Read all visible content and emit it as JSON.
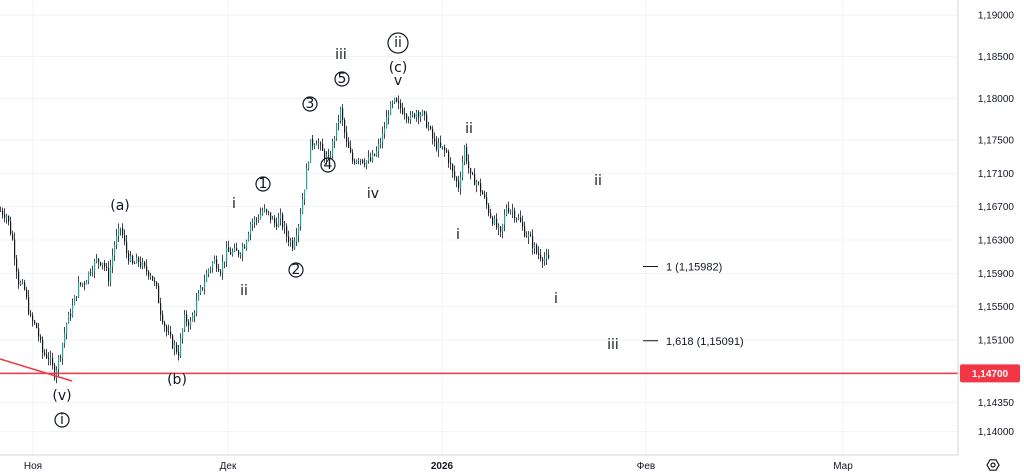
{
  "chart_data": {
    "type": "candlestick",
    "y_axis": {
      "ylim": [
        1.1372,
        1.1918
      ],
      "ticks": [
        "1,19000",
        "1,18500",
        "1,18000",
        "1,17500",
        "1,17100",
        "1,16700",
        "1,16300",
        "1,15900",
        "1,15500",
        "1,15100",
        "1,14350",
        "1,14000"
      ],
      "tick_values": [
        1.19,
        1.185,
        1.18,
        1.175,
        1.171,
        1.167,
        1.163,
        1.159,
        1.155,
        1.151,
        1.1435,
        1.14
      ]
    },
    "x_axis": {
      "labels": [
        "Ноя",
        "Дек",
        "2026",
        "Фев",
        "Мар"
      ],
      "bold": [
        false,
        false,
        true,
        false,
        false
      ]
    },
    "horizontal_line": {
      "value": 1.147,
      "label": "1,14700",
      "color": "#f23645"
    },
    "price_path": [
      [
        0,
        1.1665
      ],
      [
        6,
        1.166
      ],
      [
        12,
        1.163
      ],
      [
        18,
        1.158
      ],
      [
        24,
        1.157
      ],
      [
        30,
        1.1535
      ],
      [
        36,
        1.1525
      ],
      [
        42,
        1.1495
      ],
      [
        48,
        1.149
      ],
      [
        54,
        1.147
      ],
      [
        60,
        1.1495
      ],
      [
        66,
        1.153
      ],
      [
        72,
        1.155
      ],
      [
        78,
        1.1575
      ],
      [
        84,
        1.158
      ],
      [
        90,
        1.1595
      ],
      [
        96,
        1.1605
      ],
      [
        102,
        1.1605
      ],
      [
        108,
        1.1585
      ],
      [
        114,
        1.1625
      ],
      [
        120,
        1.1645
      ],
      [
        126,
        1.1615
      ],
      [
        132,
        1.16
      ],
      [
        138,
        1.1605
      ],
      [
        144,
        1.1595
      ],
      [
        150,
        1.159
      ],
      [
        156,
        1.157
      ],
      [
        160,
        1.1545
      ],
      [
        166,
        1.152
      ],
      [
        172,
        1.1505
      ],
      [
        178,
        1.1495
      ],
      [
        184,
        1.1535
      ],
      [
        190,
        1.153
      ],
      [
        196,
        1.1555
      ],
      [
        202,
        1.1575
      ],
      [
        208,
        1.1595
      ],
      [
        214,
        1.1605
      ],
      [
        220,
        1.1595
      ],
      [
        226,
        1.1615
      ],
      [
        232,
        1.1615
      ],
      [
        238,
        1.1615
      ],
      [
        244,
        1.1625
      ],
      [
        250,
        1.165
      ],
      [
        256,
        1.1655
      ],
      [
        262,
        1.1665
      ],
      [
        268,
        1.166
      ],
      [
        274,
        1.165
      ],
      [
        280,
        1.1655
      ],
      [
        286,
        1.1635
      ],
      [
        292,
        1.1625
      ],
      [
        298,
        1.165
      ],
      [
        304,
        1.1695
      ],
      [
        310,
        1.1745
      ],
      [
        316,
        1.175
      ],
      [
        322,
        1.1735
      ],
      [
        328,
        1.1725
      ],
      [
        334,
        1.1755
      ],
      [
        340,
        1.1785
      ],
      [
        346,
        1.1745
      ],
      [
        352,
        1.1725
      ],
      [
        358,
        1.173
      ],
      [
        364,
        1.1725
      ],
      [
        370,
        1.1725
      ],
      [
        376,
        1.1735
      ],
      [
        382,
        1.1755
      ],
      [
        388,
        1.1785
      ],
      [
        394,
        1.1795
      ],
      [
        398,
        1.179
      ],
      [
        404,
        1.1785
      ],
      [
        410,
        1.1775
      ],
      [
        416,
        1.1785
      ],
      [
        422,
        1.178
      ],
      [
        428,
        1.1765
      ],
      [
        434,
        1.1745
      ],
      [
        440,
        1.174
      ],
      [
        446,
        1.1735
      ],
      [
        452,
        1.171
      ],
      [
        458,
        1.1695
      ],
      [
        464,
        1.174
      ],
      [
        470,
        1.1705
      ],
      [
        476,
        1.17
      ],
      [
        482,
        1.1685
      ],
      [
        488,
        1.1665
      ],
      [
        494,
        1.165
      ],
      [
        500,
        1.1635
      ],
      [
        506,
        1.167
      ],
      [
        512,
        1.1665
      ],
      [
        518,
        1.1655
      ],
      [
        524,
        1.164
      ],
      [
        530,
        1.163
      ],
      [
        536,
        1.1615
      ],
      [
        542,
        1.161
      ],
      [
        548,
        1.1605
      ]
    ],
    "annotations": [
      {
        "text": "(a)",
        "x": 120,
        "y": 205,
        "color": "#131722"
      },
      {
        "text": "(b)",
        "x": 177,
        "y": 379,
        "color": "#131722"
      },
      {
        "text": "(v)",
        "x": 62,
        "y": 395,
        "color": "#131722"
      },
      {
        "text": "i",
        "x": 62,
        "y": 420,
        "circled": true,
        "color": "#131722"
      },
      {
        "text": "i",
        "x": 234,
        "y": 203,
        "color": "#131722"
      },
      {
        "text": "ii",
        "x": 244,
        "y": 290,
        "color": "#131722"
      },
      {
        "text": "1",
        "x": 263,
        "y": 184,
        "circled": true,
        "color": "#131722"
      },
      {
        "text": "2",
        "x": 296,
        "y": 270,
        "circled": true,
        "color": "#131722"
      },
      {
        "text": "3",
        "x": 310,
        "y": 104,
        "circled": true,
        "color": "#131722"
      },
      {
        "text": "4",
        "x": 328,
        "y": 165,
        "circled": true,
        "color": "#131722"
      },
      {
        "text": "5",
        "x": 342,
        "y": 79,
        "circled": true,
        "color": "#131722"
      },
      {
        "text": "iii",
        "x": 341,
        "y": 54,
        "color": "#131722"
      },
      {
        "text": "iv",
        "x": 373,
        "y": 193,
        "color": "#131722"
      },
      {
        "text": "ii",
        "x": 398,
        "y": 43,
        "circled": true,
        "color": "#131722"
      },
      {
        "text": "(c)",
        "x": 398,
        "y": 67,
        "color": "#131722"
      },
      {
        "text": "v",
        "x": 398,
        "y": 80,
        "color": "#131722"
      },
      {
        "text": "ii",
        "x": 469,
        "y": 128,
        "color": "#131722"
      },
      {
        "text": "i",
        "x": 458,
        "y": 234,
        "color": "#131722"
      },
      {
        "text": "ii",
        "x": 598,
        "y": 180,
        "color": "#e53935"
      },
      {
        "text": "i",
        "x": 556,
        "y": 298,
        "color": "#e53935"
      },
      {
        "text": "iii",
        "x": 613,
        "y": 344,
        "color": "#131722"
      }
    ],
    "fib_levels": [
      {
        "label": "1 (1,15982)",
        "value": 1.15982
      },
      {
        "label": "1,618 (1,15091)",
        "value": 1.15091
      }
    ],
    "colors": {
      "up": "#26a69a",
      "down": "#131722",
      "wick": "#131722",
      "grid": "#f0f3fa",
      "axis": "#d1d4dc"
    }
  },
  "toolbar": {
    "settings_icon": "settings-hexagon-icon"
  }
}
